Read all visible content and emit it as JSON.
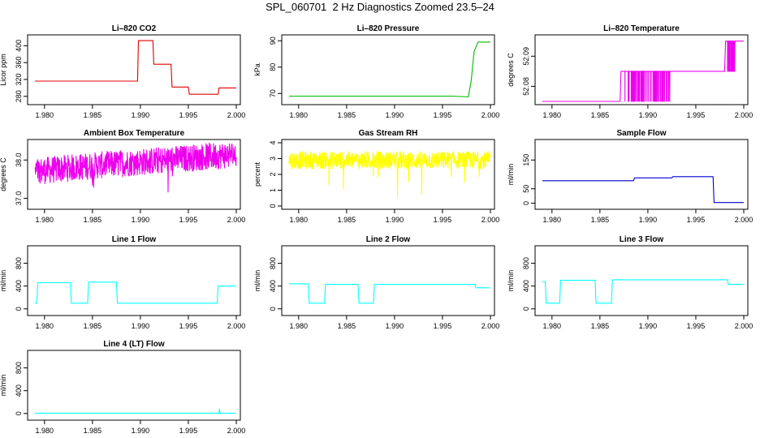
{
  "figure_title": "SPL_060701  2 Hz Diagnostics Zoomed 23.5–24",
  "chart_data": [
    {
      "type": "line",
      "title": "Li–820 CO2",
      "ylabel": "Licor ppm",
      "color": "#e00000",
      "xlim": [
        1.979,
        2.0
      ],
      "ylim": [
        268,
        418
      ],
      "xticks": [
        "1.980",
        "1.985",
        "1.990",
        "1.995",
        "2.000"
      ],
      "yticks": [
        "280",
        "320",
        "360",
        "400"
      ],
      "x": [
        1.979,
        1.9897,
        1.9898,
        1.9913,
        1.9914,
        1.9932,
        1.9933,
        1.995,
        1.9951,
        1.9981,
        1.9982,
        2.0
      ],
      "values": [
        316,
        316,
        412,
        412,
        356,
        356,
        302,
        302,
        285,
        285,
        300,
        300
      ]
    },
    {
      "type": "line",
      "title": "Li–820 Pressure",
      "ylabel": "kPa",
      "color": "#00bb00",
      "xlim": [
        1.979,
        2.0
      ],
      "ylim": [
        67,
        91
      ],
      "xticks": [
        "1.980",
        "1.985",
        "1.990",
        "1.995",
        "2.000"
      ],
      "yticks": [
        "70",
        "80",
        "90"
      ],
      "x": [
        1.979,
        1.996,
        1.9977,
        1.998,
        1.9983,
        1.9987,
        2.0
      ],
      "values": [
        69,
        69,
        68.7,
        75,
        86,
        89.5,
        89.5
      ]
    },
    {
      "type": "line",
      "title": "Li–820 Temperature",
      "ylabel": "degrees C",
      "color": "#ee00ee",
      "xlim": [
        1.979,
        2.0
      ],
      "ylim": [
        52.075,
        52.096
      ],
      "xticks": [
        "1.980",
        "1.985",
        "1.990",
        "1.995",
        "2.000"
      ],
      "yticks": [
        "52.08",
        "52.09"
      ],
      "x": [
        1.979,
        1.9871,
        1.9872,
        1.998,
        1.9981,
        2.0
      ],
      "values": [
        52.075,
        52.075,
        52.085,
        52.085,
        52.095,
        52.095
      ]
    },
    {
      "type": "line",
      "title": "Ambient Box Temperature",
      "ylabel": "degrees C",
      "color": "#ee00ee",
      "xlim": [
        1.979,
        2.0
      ],
      "ylim": [
        36.8,
        38.45
      ],
      "xticks": [
        "1.980",
        "1.985",
        "1.990",
        "1.995",
        "2.000"
      ],
      "yticks": [
        "37.0",
        "38.0"
      ],
      "x": [
        1.979,
        1.985,
        1.99,
        1.995,
        2.0
      ],
      "values": [
        37.7,
        37.85,
        37.95,
        38.05,
        38.15
      ]
    },
    {
      "type": "line",
      "title": "Gas Stream RH",
      "ylabel": "percent",
      "color": "#ffff00",
      "xlim": [
        1.979,
        2.0
      ],
      "ylim": [
        0,
        4
      ],
      "xticks": [
        "1.980",
        "1.985",
        "1.990",
        "1.995",
        "2.000"
      ],
      "yticks": [
        "0",
        "1",
        "2",
        "3",
        "4"
      ],
      "x": [
        1.979,
        2.0
      ],
      "values": [
        2.9,
        2.9
      ]
    },
    {
      "type": "line",
      "title": "Sample Flow",
      "ylabel": "ml/min",
      "color": "#0000cc",
      "xlim": [
        1.979,
        2.0
      ],
      "ylim": [
        -10,
        210
      ],
      "xticks": [
        "1.980",
        "1.985",
        "1.990",
        "1.995",
        "2.000"
      ],
      "yticks": [
        "0",
        "50",
        "150"
      ],
      "x": [
        1.979,
        1.9885,
        1.9886,
        1.9925,
        1.9926,
        1.9968,
        1.9969,
        2.0
      ],
      "values": [
        78,
        78,
        88,
        88,
        92,
        92,
        2,
        2
      ]
    },
    {
      "type": "line",
      "title": "Line 1 Flow",
      "ylabel": "ml/min",
      "color": "#00ffff",
      "xlim": [
        1.979,
        2.0
      ],
      "ylim": [
        -60,
        1050
      ],
      "xticks": [
        "1.980",
        "1.985",
        "1.990",
        "1.995",
        "2.000"
      ],
      "yticks": [
        "0",
        "400",
        "800"
      ],
      "x": [
        1.979,
        1.9792,
        1.9793,
        1.9827,
        1.9828,
        1.9845,
        1.9846,
        1.9875,
        1.9876,
        1.998,
        1.9981,
        2.0
      ],
      "values": [
        100,
        100,
        460,
        460,
        100,
        100,
        470,
        470,
        100,
        100,
        400,
        400
      ]
    },
    {
      "type": "line",
      "title": "Line 2 Flow",
      "ylabel": "ml/min",
      "color": "#00ffff",
      "xlim": [
        1.979,
        2.0
      ],
      "ylim": [
        -60,
        1050
      ],
      "xticks": [
        "1.980",
        "1.985",
        "1.990",
        "1.995",
        "2.000"
      ],
      "yticks": [
        "0",
        "400",
        "800"
      ],
      "x": [
        1.979,
        1.981,
        1.9811,
        1.9827,
        1.9828,
        1.9862,
        1.9863,
        1.9878,
        1.9879,
        1.9984,
        1.9985,
        2.0
      ],
      "values": [
        440,
        440,
        100,
        100,
        430,
        430,
        100,
        100,
        430,
        430,
        370,
        370
      ]
    },
    {
      "type": "line",
      "title": "Line 3 Flow",
      "ylabel": "ml/min",
      "color": "#00ffff",
      "xlim": [
        1.979,
        2.0
      ],
      "ylim": [
        -60,
        1050
      ],
      "xticks": [
        "1.980",
        "1.985",
        "1.990",
        "1.995",
        "2.000"
      ],
      "yticks": [
        "0",
        "400",
        "800"
      ],
      "x": [
        1.979,
        1.9793,
        1.9794,
        1.9808,
        1.9809,
        1.9845,
        1.9846,
        1.9862,
        1.9863,
        1.9983,
        1.9984,
        2.0
      ],
      "values": [
        480,
        480,
        100,
        100,
        500,
        500,
        100,
        100,
        510,
        510,
        430,
        430
      ]
    },
    {
      "type": "line",
      "title": "Line 4 (LT) Flow",
      "ylabel": "ml/min",
      "color": "#00ffff",
      "xlim": [
        1.979,
        2.0
      ],
      "ylim": [
        -60,
        1050
      ],
      "xticks": [
        "1.980",
        "1.985",
        "1.990",
        "1.995",
        "2.000"
      ],
      "yticks": [
        "0",
        "400",
        "800"
      ],
      "x": [
        1.979,
        1.9982,
        1.99825,
        1.9983,
        2.0
      ],
      "values": [
        5,
        5,
        80,
        5,
        5
      ]
    }
  ]
}
